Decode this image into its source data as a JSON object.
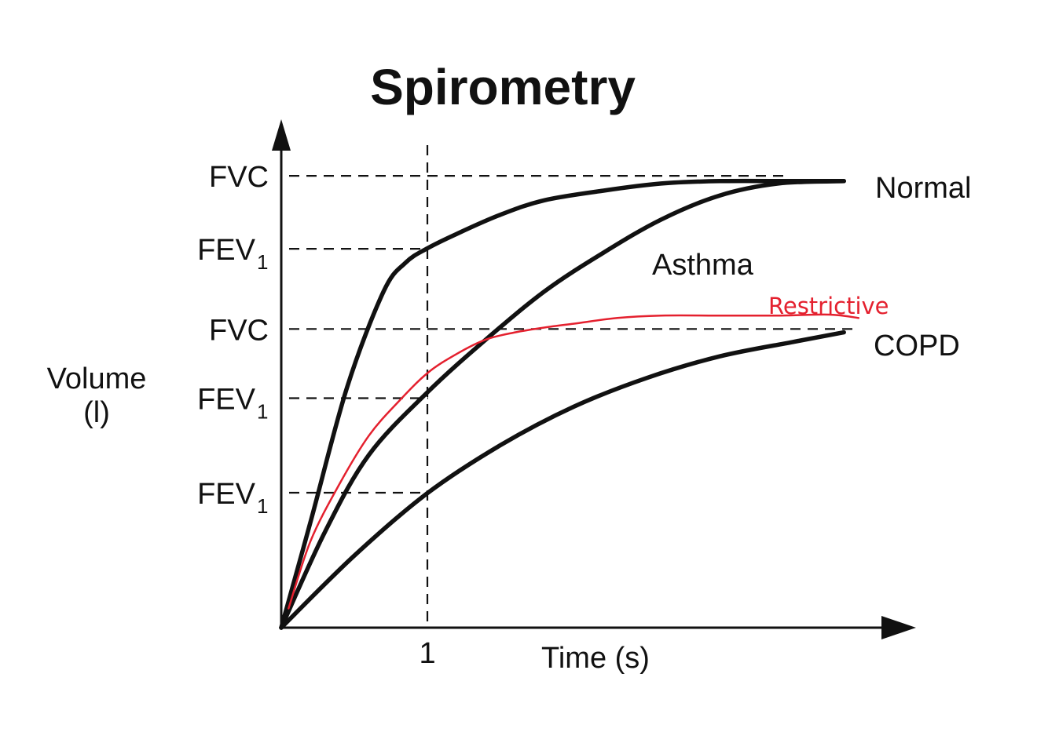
{
  "chart_data": {
    "type": "line",
    "title": "Spirometry",
    "xlabel": "Time (s)",
    "ylabel": "Volume",
    "ylabel_unit": "(l)",
    "xlim": [
      0,
      4.15
    ],
    "ylim": [
      0,
      1.0
    ],
    "x_ticks": [
      {
        "value": 1,
        "label": "1"
      }
    ],
    "y_ticks": [
      {
        "value": 0.941,
        "label": "FVC",
        "sub": ""
      },
      {
        "value": 0.789,
        "label": "FEV",
        "sub": "1"
      },
      {
        "value": 0.622,
        "label": "FVC",
        "sub": ""
      },
      {
        "value": 0.478,
        "label": "FEV",
        "sub": "1"
      },
      {
        "value": 0.281,
        "label": "FEV",
        "sub": "1"
      }
    ],
    "series": [
      {
        "name": "Normal",
        "color": "#111111",
        "x": [
          0,
          0.2,
          0.45,
          0.7,
          0.85,
          1.0,
          1.2,
          1.5,
          1.8,
          2.2,
          2.6,
          3.0,
          3.5,
          3.85
        ],
        "y": [
          0,
          0.22,
          0.5,
          0.7,
          0.76,
          0.79,
          0.82,
          0.86,
          0.89,
          0.91,
          0.925,
          0.93,
          0.93,
          0.93
        ]
      },
      {
        "name": "Asthma",
        "color": "#111111",
        "x": [
          0,
          0.3,
          0.6,
          1.0,
          1.4,
          1.8,
          2.2,
          2.6,
          3.0,
          3.4,
          3.85
        ],
        "y": [
          0,
          0.2,
          0.36,
          0.49,
          0.6,
          0.7,
          0.78,
          0.85,
          0.9,
          0.925,
          0.93
        ]
      },
      {
        "name": "COPD",
        "color": "#111111",
        "x": [
          0,
          0.5,
          1.0,
          1.5,
          2.0,
          2.5,
          3.0,
          3.5,
          3.85
        ],
        "y": [
          0,
          0.15,
          0.28,
          0.38,
          0.46,
          0.52,
          0.565,
          0.595,
          0.615
        ]
      },
      {
        "name": "Restrictive",
        "color": "#e4202e",
        "x": [
          0.05,
          0.2,
          0.4,
          0.6,
          0.8,
          1.0,
          1.2,
          1.4,
          1.6,
          1.8,
          2.0,
          2.3,
          2.6,
          3.0,
          3.4,
          3.75,
          3.95
        ],
        "y": [
          0.04,
          0.18,
          0.3,
          0.4,
          0.47,
          0.53,
          0.57,
          0.6,
          0.615,
          0.625,
          0.633,
          0.645,
          0.65,
          0.65,
          0.65,
          0.652,
          0.645
        ]
      }
    ]
  }
}
